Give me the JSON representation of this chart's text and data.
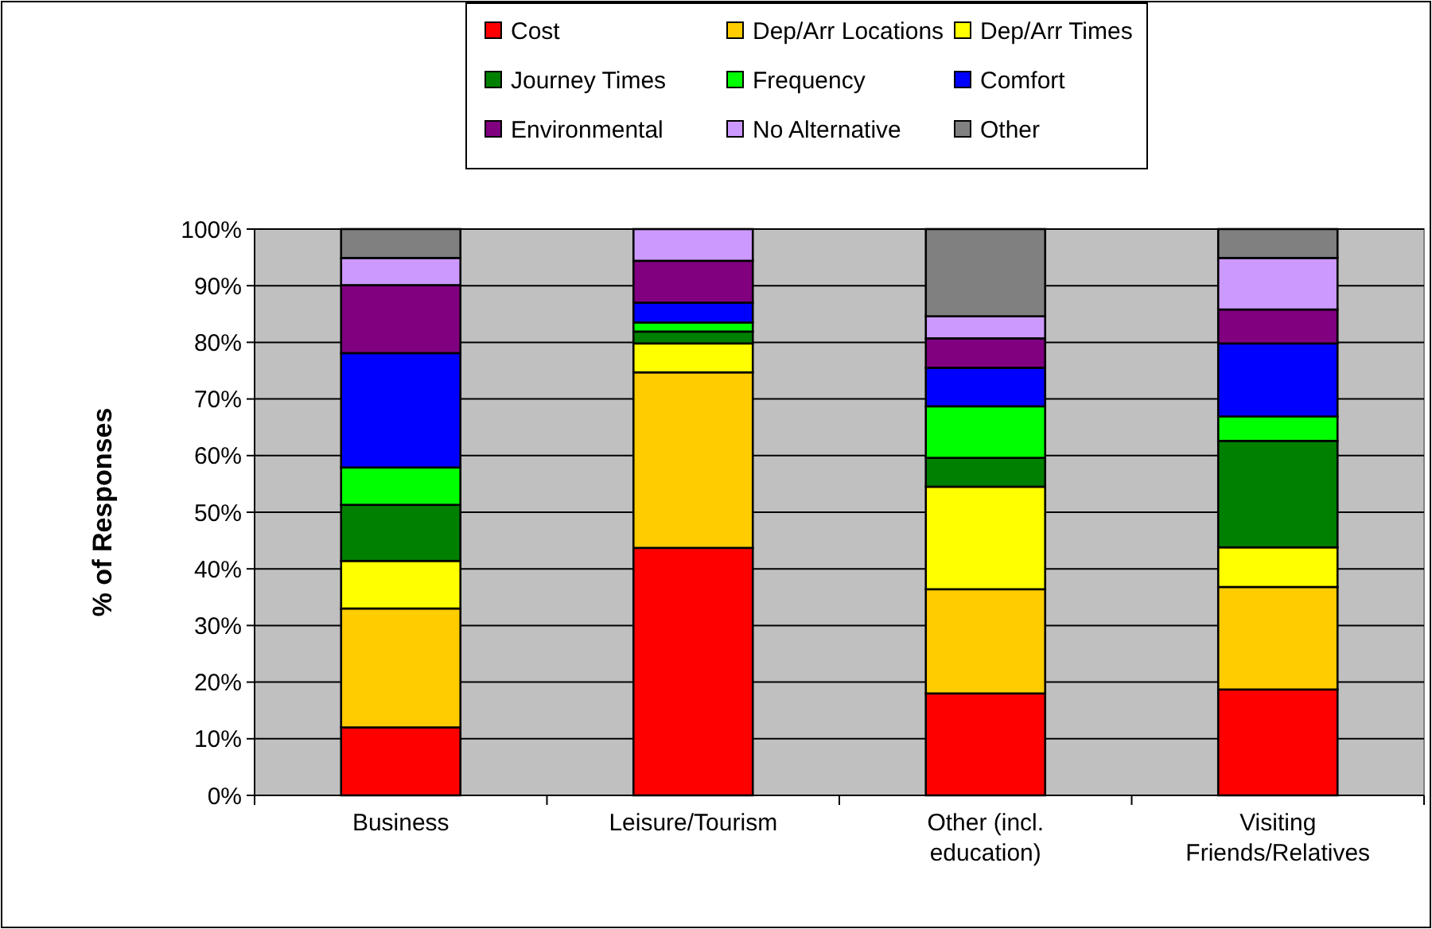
{
  "chart_data": {
    "type": "bar",
    "stacked": true,
    "ylabel": "% of Responses",
    "categories": [
      "Business",
      "Leisure/Tourism",
      "Other (incl. education)",
      "Visiting Friends/Relatives"
    ],
    "series": [
      {
        "name": "Cost",
        "color": "#ff0000",
        "values": [
          12,
          43.7,
          18,
          18.7
        ]
      },
      {
        "name": "Dep/Arr Locations",
        "color": "#ffcc00",
        "values": [
          21,
          31,
          18.4,
          18.1
        ]
      },
      {
        "name": "Dep/Arr Times",
        "color": "#ffff00",
        "values": [
          8.4,
          5.1,
          18.1,
          7
        ]
      },
      {
        "name": "Journey Times",
        "color": "#008000",
        "values": [
          9.9,
          2.1,
          5.1,
          18.8
        ]
      },
      {
        "name": "Frequency",
        "color": "#00ff00",
        "values": [
          6.6,
          1.6,
          9.1,
          4.3
        ]
      },
      {
        "name": "Comfort",
        "color": "#0000ff",
        "values": [
          20.2,
          3.5,
          6.8,
          12.9
        ]
      },
      {
        "name": "Environmental",
        "color": "#800080",
        "values": [
          12,
          7.4,
          5.2,
          6
        ]
      },
      {
        "name": "No Alternative",
        "color": "#cc99ff",
        "values": [
          4.8,
          5.6,
          3.9,
          9.1
        ]
      },
      {
        "name": "Other",
        "color": "#808080",
        "values": [
          5.1,
          0,
          15.4,
          5.1
        ]
      }
    ],
    "ylim": [
      0,
      100
    ],
    "yticks": [
      {
        "value": 0,
        "label": "0%"
      },
      {
        "value": 10,
        "label": "10%"
      },
      {
        "value": 20,
        "label": "20%"
      },
      {
        "value": 30,
        "label": "30%"
      },
      {
        "value": 40,
        "label": "40%"
      },
      {
        "value": 50,
        "label": "50%"
      },
      {
        "value": 60,
        "label": "60%"
      },
      {
        "value": 70,
        "label": "70%"
      },
      {
        "value": 80,
        "label": "80%"
      },
      {
        "value": 90,
        "label": "90%"
      },
      {
        "value": 100,
        "label": "100%"
      }
    ],
    "grid": "y",
    "legend": "top"
  }
}
